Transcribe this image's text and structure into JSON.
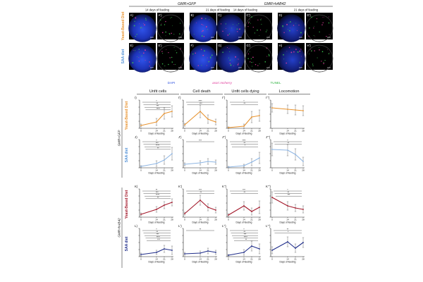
{
  "micro": {
    "groups": [
      {
        "genotype": "GMR>GFP",
        "days": [
          "14 days of feeding",
          "21 days of feeding"
        ]
      },
      {
        "genotype": "GMR>hAB42",
        "days": [
          "14 days of feeding",
          "21 days of feeding"
        ]
      }
    ],
    "rows": [
      {
        "diet": "Yeast-Based Diet",
        "color": "#e8932f",
        "labels": [
          "A)",
          "A')",
          "B)",
          "B')",
          "C)",
          "C')",
          "D)",
          "D')"
        ]
      },
      {
        "diet": "SAA diet",
        "color": "#4f8fd6",
        "labels": [
          "E)",
          "E')",
          "F)",
          "F')",
          "G)",
          "G')",
          "H)",
          "H')"
        ]
      }
    ],
    "stain_legend": [
      {
        "label": "DAPI",
        "color": "#3457e0"
      },
      {
        "label": "asot::mcherry",
        "color": "#e0399a"
      },
      {
        "label": "TUNEL",
        "color": "#35b546"
      }
    ]
  },
  "panels": {
    "column_titles": [
      "Unfit cells",
      "Cell death",
      "Unfit cells dying",
      "Locomotion"
    ],
    "genotype_labels": [
      "GMR>GFP",
      "GMR>hAB42"
    ],
    "x_axis_title": "Days of feeding",
    "x_ticks": [
      "0",
      "14",
      "21",
      "28"
    ],
    "row_colors": [
      "#e8932f",
      "#8fb6e3",
      "#a3182a",
      "#1f2d8a"
    ],
    "rows": [
      {
        "diet": "Yeast-Based Diet",
        "diet_color": "#e8932f",
        "labels": [
          "I)",
          "I')",
          "I'')",
          "I''')"
        ]
      },
      {
        "diet": "SAA diet",
        "diet_color": "#4f8fd6",
        "labels": [
          "J)",
          "J')",
          "J'')",
          "J''')"
        ]
      },
      {
        "diet": "Yeast-Based Diet",
        "diet_color": "#a3182a",
        "labels": [
          "K)",
          "K')",
          "K'')",
          "K''')"
        ]
      },
      {
        "diet": "SAA diet",
        "diet_color": "#1f2d8a",
        "labels": [
          "L)",
          "L')",
          "L'')",
          "L''')"
        ]
      }
    ]
  },
  "chart_data": [
    {
      "type": "line",
      "title": "Unfit cells",
      "row": "I",
      "x": [
        0,
        14,
        21,
        28
      ],
      "values": [
        0.4,
        0.9,
        2.1,
        2.4
      ],
      "errors": [
        0.2,
        0.5,
        0.8,
        0.8
      ],
      "ylim": [
        0,
        4
      ],
      "significance": [
        "*",
        "**",
        "***",
        "****"
      ]
    },
    {
      "type": "line",
      "title": "Cell death",
      "row": "I'",
      "x": [
        0,
        14,
        21,
        28
      ],
      "values": [
        0.5,
        2.4,
        1.3,
        0.9
      ],
      "errors": [
        0.2,
        0.9,
        0.6,
        0.4
      ],
      "ylim": [
        0,
        4
      ],
      "significance": [
        "****",
        "***"
      ]
    },
    {
      "type": "line",
      "title": "Unfit cells dying",
      "row": "I''",
      "x": [
        0,
        14,
        21,
        28
      ],
      "values": [
        0.1,
        0.3,
        1.6,
        1.8
      ],
      "errors": [
        0.1,
        0.3,
        0.8,
        0.8
      ],
      "ylim": [
        0,
        4
      ],
      "significance": [
        "*",
        "**"
      ]
    },
    {
      "type": "line",
      "title": "Locomotion",
      "row": "I'''",
      "x": [
        0,
        14,
        21,
        28
      ],
      "values": [
        2.9,
        2.7,
        2.6,
        2.5
      ],
      "errors": [
        0.6,
        0.6,
        0.7,
        0.7
      ],
      "ylim": [
        0,
        4
      ],
      "significance": []
    },
    {
      "type": "line",
      "title": "Unfit cells",
      "row": "J",
      "x": [
        0,
        14,
        21,
        28
      ],
      "values": [
        0.2,
        0.6,
        1.1,
        2.0
      ],
      "errors": [
        0.1,
        0.4,
        0.6,
        0.9
      ],
      "ylim": [
        0,
        4
      ],
      "significance": [
        "*",
        "***",
        "****",
        "**"
      ]
    },
    {
      "type": "line",
      "title": "Cell death",
      "row": "J'",
      "x": [
        0,
        14,
        21,
        28
      ],
      "values": [
        0.5,
        0.7,
        0.9,
        0.8
      ],
      "errors": [
        0.2,
        0.3,
        0.4,
        0.3
      ],
      "ylim": [
        0,
        4
      ],
      "significance": [
        "***"
      ]
    },
    {
      "type": "line",
      "title": "Unfit cells dying",
      "row": "J''",
      "x": [
        0,
        14,
        21,
        28
      ],
      "values": [
        0.1,
        0.3,
        0.8,
        1.4
      ],
      "errors": [
        0.1,
        0.2,
        0.5,
        0.8
      ],
      "ylim": [
        0,
        4
      ],
      "significance": [
        "****",
        "**",
        "*"
      ]
    },
    {
      "type": "line",
      "title": "Locomotion",
      "row": "J'''",
      "x": [
        0,
        14,
        21,
        28
      ],
      "values": [
        2.6,
        2.5,
        1.9,
        0.9
      ],
      "errors": [
        0.9,
        0.8,
        0.8,
        0.6
      ],
      "ylim": [
        0,
        4
      ],
      "significance": [
        "*",
        "**"
      ]
    },
    {
      "type": "line",
      "title": "Unfit cells",
      "row": "K",
      "x": [
        0,
        14,
        21,
        28
      ],
      "values": [
        0.4,
        1.1,
        1.7,
        2.1
      ],
      "errors": [
        0.2,
        0.4,
        0.5,
        0.5
      ],
      "ylim": [
        0,
        4
      ],
      "significance": [
        "**",
        "***",
        "****",
        "**"
      ]
    },
    {
      "type": "line",
      "title": "Cell death",
      "row": "K'",
      "x": [
        0,
        14,
        21,
        28
      ],
      "values": [
        0.5,
        2.4,
        1.4,
        1.0
      ],
      "errors": [
        0.2,
        0.7,
        0.5,
        0.4
      ],
      "ylim": [
        0,
        4
      ],
      "significance": [
        "***",
        "**"
      ]
    },
    {
      "type": "line",
      "title": "Unfit cells dying",
      "row": "K''",
      "x": [
        0,
        14,
        21,
        28
      ],
      "values": [
        0.3,
        1.6,
        0.8,
        1.4
      ],
      "errors": [
        0.2,
        0.6,
        0.5,
        0.9
      ],
      "ylim": [
        0,
        4
      ],
      "significance": [
        "***",
        "**"
      ]
    },
    {
      "type": "line",
      "title": "Locomotion",
      "row": "K'''",
      "x": [
        0,
        14,
        21,
        28
      ],
      "values": [
        2.8,
        1.6,
        1.3,
        1.1
      ],
      "errors": [
        0.8,
        0.6,
        0.5,
        0.5
      ],
      "ylim": [
        0,
        4
      ],
      "significance": [
        "*",
        "**",
        "***"
      ]
    },
    {
      "type": "line",
      "title": "Unfit cells",
      "row": "L",
      "x": [
        0,
        14,
        21,
        28
      ],
      "values": [
        0.3,
        0.6,
        1.1,
        0.9
      ],
      "errors": [
        0.2,
        0.3,
        0.5,
        0.6
      ],
      "ylim": [
        0,
        4
      ],
      "significance": [
        "*",
        "**",
        "***",
        "****",
        "***"
      ]
    },
    {
      "type": "line",
      "title": "Cell death",
      "row": "L'",
      "x": [
        0,
        14,
        21,
        28
      ],
      "values": [
        0.4,
        0.5,
        0.8,
        0.6
      ],
      "errors": [
        0.2,
        0.3,
        0.4,
        0.3
      ],
      "ylim": [
        0,
        4
      ],
      "significance": [
        "**"
      ]
    },
    {
      "type": "line",
      "title": "Unfit cells dying",
      "row": "L''",
      "x": [
        0,
        14,
        21,
        28
      ],
      "values": [
        0.2,
        0.6,
        1.5,
        1.1
      ],
      "errors": [
        0.1,
        0.4,
        0.7,
        0.7
      ],
      "ylim": [
        0,
        4
      ],
      "significance": [
        "*",
        "**",
        "***",
        "****",
        "**"
      ]
    },
    {
      "type": "line",
      "title": "Locomotion",
      "row": "L'''",
      "x": [
        0,
        14,
        21,
        28
      ],
      "values": [
        0.9,
        2.1,
        1.2,
        2.0
      ],
      "errors": [
        0.5,
        0.7,
        0.6,
        0.7
      ],
      "ylim": [
        0,
        4
      ],
      "significance": [
        "**",
        "*"
      ]
    }
  ]
}
